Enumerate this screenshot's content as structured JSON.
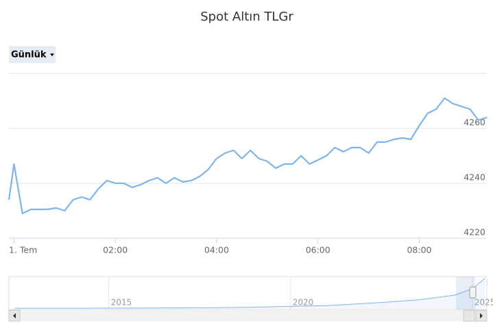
{
  "chart_data": [
    {
      "type": "line",
      "title": "Spot Altın TLGr",
      "range_button": "Günlük",
      "color": "#7cb5ec",
      "x": [
        -6,
        0,
        10,
        20,
        30,
        40,
        50,
        60,
        70,
        80,
        90,
        100,
        110,
        120,
        130,
        140,
        150,
        160,
        170,
        180,
        190,
        200,
        210,
        220,
        230,
        240,
        250,
        260,
        270,
        280,
        290,
        300,
        310,
        320,
        330,
        340,
        350,
        360,
        370,
        380,
        390,
        400,
        410,
        420,
        430,
        440,
        450,
        460,
        470,
        480,
        490,
        500,
        510,
        520,
        530,
        540,
        550,
        560
      ],
      "values": [
        4234,
        4247,
        4229,
        4230.5,
        4230.5,
        4230.5,
        4231,
        4230,
        4234,
        4235,
        4234,
        4238,
        4241,
        4240,
        4240,
        4238.5,
        4239.5,
        4241,
        4242,
        4240,
        4242,
        4240.5,
        4241,
        4242.5,
        4245,
        4249,
        4251,
        4252,
        4249,
        4252,
        4249,
        4248,
        4245.5,
        4247,
        4247,
        4250,
        4247,
        4248.5,
        4250,
        4253,
        4251.5,
        4253,
        4253,
        4251,
        4255,
        4255,
        4256,
        4256.5,
        4256,
        4261,
        4265.5,
        4267,
        4271,
        4269,
        4268,
        4267,
        4263,
        4264
      ],
      "xlim": [
        -6,
        560
      ],
      "xticks": [
        {
          "value": 0,
          "label": "1. Tem"
        },
        {
          "value": 120,
          "label": "02:00"
        },
        {
          "value": 240,
          "label": "04:00"
        },
        {
          "value": 360,
          "label": "06:00"
        },
        {
          "value": 480,
          "label": "08:00"
        }
      ],
      "ylim": [
        4220,
        4280
      ],
      "yticks": [
        4220,
        4240,
        4260
      ],
      "grid": true
    },
    {
      "type": "area",
      "color": "#7cb5ec",
      "x": [
        2012.4,
        2014,
        2016,
        2018,
        2019,
        2020,
        2021,
        2022.5,
        2023.5,
        2024.5,
        2025,
        2025.35
      ],
      "values": [
        90,
        90,
        120,
        170,
        230,
        360,
        450,
        900,
        1250,
        1900,
        2800,
        4260
      ],
      "xlim": [
        2012.25,
        2025.4
      ],
      "xticks": [
        2015,
        2020,
        2025
      ],
      "ylim": [
        0,
        4300
      ],
      "grid": true
    }
  ]
}
